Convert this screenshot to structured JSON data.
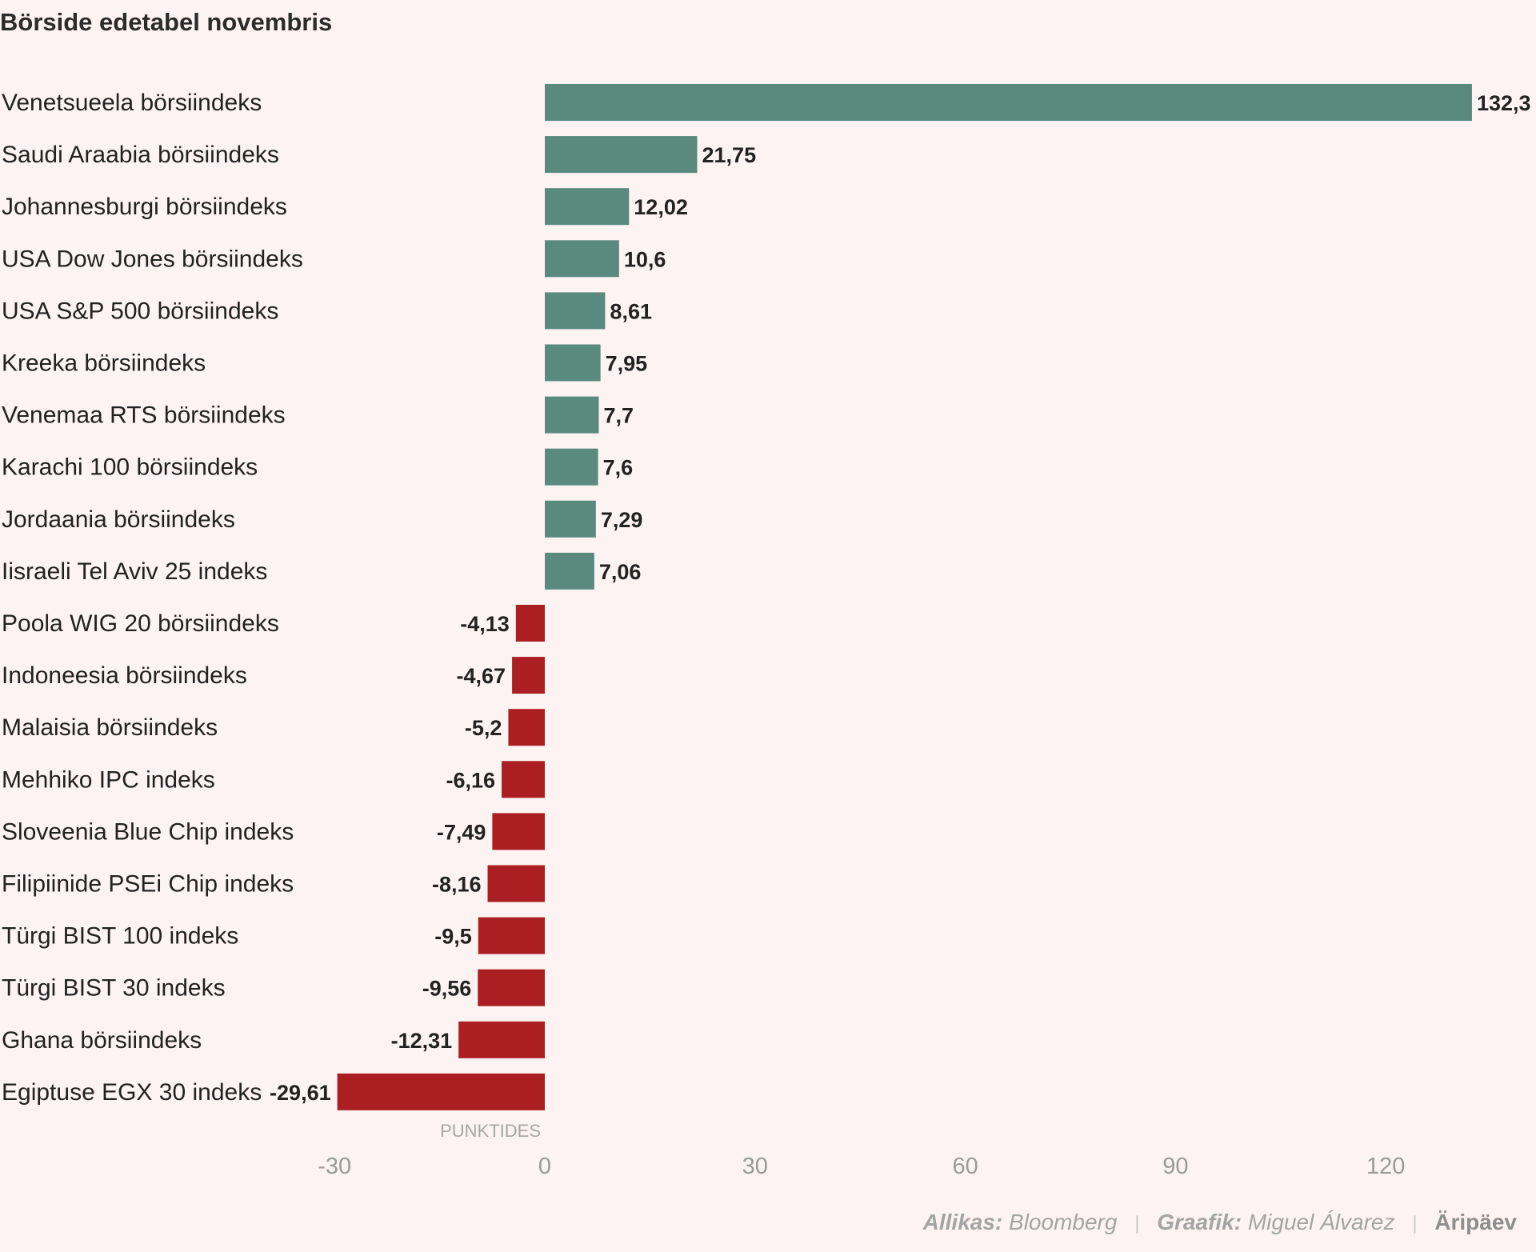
{
  "title": "Börside edetabel novembris",
  "chart_data": {
    "type": "bar",
    "orientation": "horizontal",
    "categories": [
      "Venetsueela börsiindeks",
      "Saudi Araabia börsiindeks",
      "Johannesburgi börsiindeks",
      "USA Dow Jones börsiindeks",
      "USA S&P 500 börsiindeks",
      "Kreeka börsiindeks",
      "Venemaa RTS börsiindeks",
      "Karachi 100 börsiindeks",
      "Jordaania börsiindeks",
      "Iisraeli Tel Aviv 25 indeks",
      "Poola WIG 20 börsiindeks",
      "Indoneesia börsiindeks",
      "Malaisia börsiindeks",
      "Mehhiko IPC indeks",
      "Sloveenia Blue Chip indeks",
      "Filipiinide PSEi Chip indeks",
      "Türgi BIST 100 indeks",
      "Türgi BIST 30 indeks",
      "Ghana börsiindeks",
      "Egiptuse EGX 30 indeks"
    ],
    "values": [
      132.3,
      21.75,
      12.02,
      10.6,
      8.61,
      7.95,
      7.7,
      7.6,
      7.29,
      7.06,
      -4.13,
      -4.67,
      -5.2,
      -6.16,
      -7.49,
      -8.16,
      -9.5,
      -9.56,
      -12.31,
      -29.61
    ],
    "value_labels": [
      "132,3",
      "21,75",
      "12,02",
      "10,6",
      "8,61",
      "7,95",
      "7,7",
      "7,6",
      "7,29",
      "7,06",
      "-4,13",
      "-4,67",
      "-5,2",
      "-6,16",
      "-7,49",
      "-8,16",
      "-9,5",
      "-9,56",
      "-12,31",
      "-29,61"
    ],
    "xlim": [
      -30,
      132.3
    ],
    "xticks": [
      -30,
      0,
      30,
      60,
      90,
      120
    ],
    "xtick_labels": [
      "-30",
      "0",
      "30",
      "60",
      "90",
      "120"
    ],
    "xlabel": "PUNKTIDES",
    "ylabel": "",
    "positive_color": "#5a8a7e",
    "negative_color": "#ab1f23",
    "grid": false
  },
  "credits": {
    "source_key": "Allikas:",
    "source_value": "Bloomberg",
    "graphic_key": "Graafik:",
    "graphic_value": "Miguel Álvarez",
    "brand": "Äripäev"
  }
}
